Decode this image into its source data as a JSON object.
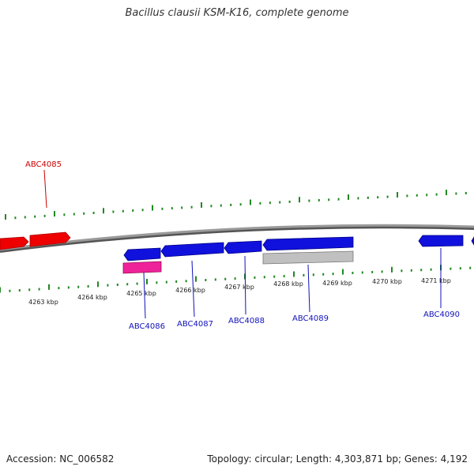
{
  "title": "Bacillus clausii KSM-K16, complete genome",
  "footer": {
    "accession": "Accession: NC_006582",
    "summary": "Topology: circular; Length: 4,303,871 bp; Genes: 4,192"
  },
  "colors": {
    "forward_gene": "#ee0000",
    "reverse_gene": "#1111dd",
    "pink_feature": "#ee2299",
    "gray_feature": "#bbbbbb",
    "backbone": "#888888",
    "tick": "#228822",
    "label_forward": "#cc0000",
    "label_reverse": "#1111bb"
  },
  "ruler": {
    "labels": [
      "4263 kbp",
      "4264 kbp",
      "4265 kbp",
      "4266 kbp",
      "4267 kbp",
      "4268 kbp",
      "4269 kbp",
      "4270 kbp",
      "4271 kbp"
    ]
  },
  "genes": [
    {
      "name": "",
      "strand": "forward"
    },
    {
      "name": "ABC4085",
      "strand": "forward"
    },
    {
      "name": "ABC4086",
      "strand": "reverse"
    },
    {
      "name": "ABC4087",
      "strand": "reverse"
    },
    {
      "name": "ABC4088",
      "strand": "reverse"
    },
    {
      "name": "ABC4089",
      "strand": "reverse"
    },
    {
      "name": "ABC4090",
      "strand": "reverse"
    },
    {
      "name": "",
      "strand": "reverse"
    }
  ],
  "gene_labels": [
    "ABC4085",
    "ABC4086",
    "ABC4087",
    "ABC4088",
    "ABC4089",
    "ABC4090"
  ]
}
